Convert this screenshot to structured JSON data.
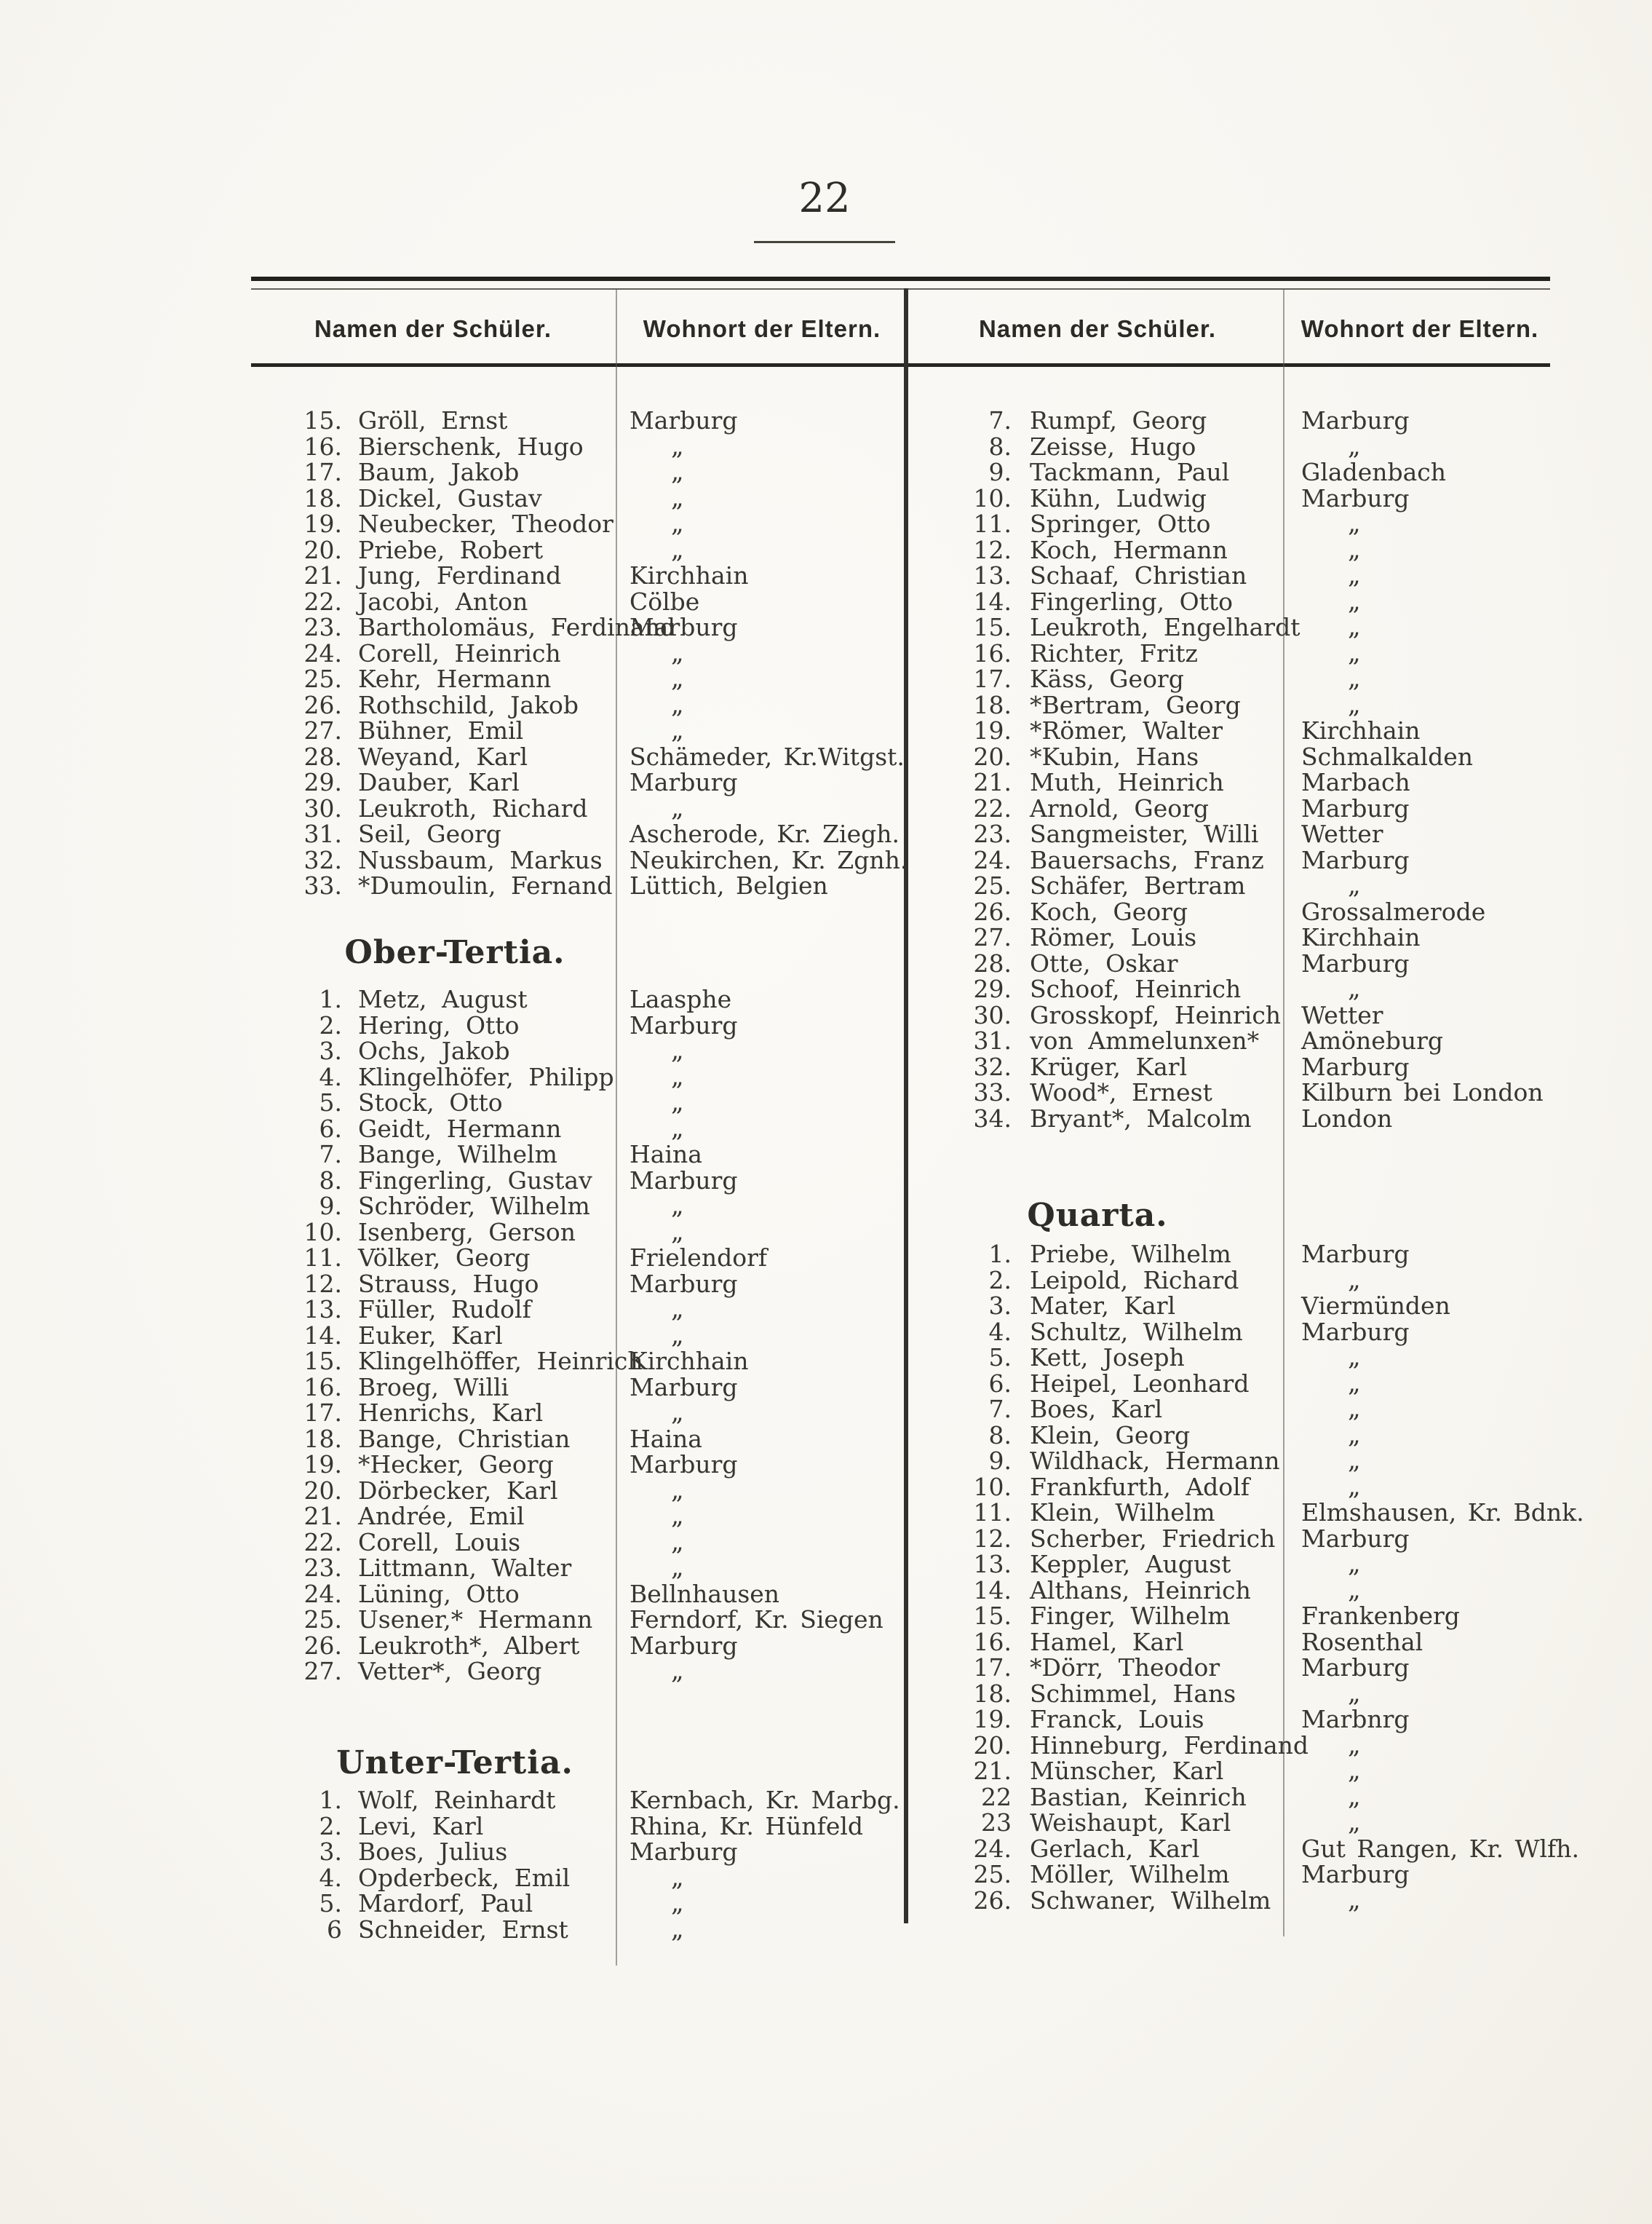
{
  "page_number": "22",
  "colors": {
    "paper": "#f8f6f1",
    "ink": "#38362f",
    "rule": "#23211c"
  },
  "table": {
    "headers": [
      "Namen der Schüler.",
      "Wohnort der Eltern.",
      "Namen der Schüler.",
      "Wohnort der Eltern."
    ],
    "ditto_mark": "„",
    "halves": [
      {
        "id": "left",
        "sections": [
          {
            "heading": "",
            "rows": [
              {
                "num": "15.",
                "name": "Gröll, Ernst",
                "place": "Marburg"
              },
              {
                "num": "16.",
                "name": "Bierschenk, Hugo",
                "place": "„"
              },
              {
                "num": "17.",
                "name": "Baum, Jakob",
                "place": "„"
              },
              {
                "num": "18.",
                "name": "Dickel, Gustav",
                "place": "„"
              },
              {
                "num": "19.",
                "name": "Neubecker, Theodor",
                "place": "„"
              },
              {
                "num": "20.",
                "name": "Priebe, Robert",
                "place": "„"
              },
              {
                "num": "21.",
                "name": "Jung, Ferdinand",
                "place": "Kirchhain"
              },
              {
                "num": "22.",
                "name": "Jacobi, Anton",
                "place": "Cölbe"
              },
              {
                "num": "23.",
                "name": "Bartholomäus, Ferdinand",
                "place": "Marburg"
              },
              {
                "num": "24.",
                "name": "Corell, Heinrich",
                "place": "„"
              },
              {
                "num": "25.",
                "name": "Kehr, Hermann",
                "place": "„"
              },
              {
                "num": "26.",
                "name": "Rothschild, Jakob",
                "place": "„"
              },
              {
                "num": "27.",
                "name": "Bühner, Emil",
                "place": "„"
              },
              {
                "num": "28.",
                "name": "Weyand, Karl",
                "place": "Schämeder, Kr.Witgst."
              },
              {
                "num": "29.",
                "name": "Dauber, Karl",
                "place": "Marburg"
              },
              {
                "num": "30.",
                "name": "Leukroth, Richard",
                "place": "„"
              },
              {
                "num": "31.",
                "name": "Seil, Georg",
                "place": "Ascherode, Kr. Ziegh."
              },
              {
                "num": "32.",
                "name": "Nussbaum, Markus",
                "place": "Neukirchen, Kr. Zgnh."
              },
              {
                "num": "33.",
                "name": "*Dumoulin, Fernand",
                "place": "Lüttich, Belgien"
              }
            ]
          },
          {
            "heading": "Ober-Tertia.",
            "rows": [
              {
                "num": "1.",
                "name": "Metz, August",
                "place": "Laasphe"
              },
              {
                "num": "2.",
                "name": "Hering, Otto",
                "place": "Marburg"
              },
              {
                "num": "3.",
                "name": "Ochs, Jakob",
                "place": "„"
              },
              {
                "num": "4.",
                "name": "Klingelhöfer, Philipp",
                "place": "„"
              },
              {
                "num": "5.",
                "name": "Stock, Otto",
                "place": "„"
              },
              {
                "num": "6.",
                "name": "Geidt, Hermann",
                "place": "„"
              },
              {
                "num": "7.",
                "name": "Bange, Wilhelm",
                "place": "Haina"
              },
              {
                "num": "8.",
                "name": "Fingerling, Gustav",
                "place": "Marburg"
              },
              {
                "num": "9.",
                "name": "Schröder, Wilhelm",
                "place": "„"
              },
              {
                "num": "10.",
                "name": "Isenberg, Gerson",
                "place": "„"
              },
              {
                "num": "11.",
                "name": "Völker, Georg",
                "place": "Frielendorf"
              },
              {
                "num": "12.",
                "name": "Strauss, Hugo",
                "place": "Marburg"
              },
              {
                "num": "13.",
                "name": "Füller, Rudolf",
                "place": "„"
              },
              {
                "num": "14.",
                "name": "Euker, Karl",
                "place": "„"
              },
              {
                "num": "15.",
                "name": "Klingelhöffer, Heinrich",
                "place": "Kirchhain"
              },
              {
                "num": "16.",
                "name": "Broeg, Willi",
                "place": "Marburg"
              },
              {
                "num": "17.",
                "name": "Henrichs, Karl",
                "place": "„"
              },
              {
                "num": "18.",
                "name": "Bange, Christian",
                "place": "Haina"
              },
              {
                "num": "19.",
                "name": "*Hecker, Georg",
                "place": "Marburg"
              },
              {
                "num": "20.",
                "name": "Dörbecker, Karl",
                "place": "„"
              },
              {
                "num": "21.",
                "name": "Andrée, Emil",
                "place": "„"
              },
              {
                "num": "22.",
                "name": "Corell, Louis",
                "place": "„"
              },
              {
                "num": "23.",
                "name": "Littmann, Walter",
                "place": "„"
              },
              {
                "num": "24.",
                "name": "Lüning, Otto",
                "place": "Bellnhausen"
              },
              {
                "num": "25.",
                "name": "Usener,* Hermann",
                "place": "Ferndorf, Kr. Siegen"
              },
              {
                "num": "26.",
                "name": "Leukroth*, Albert",
                "place": "Marburg"
              },
              {
                "num": "27.",
                "name": "Vetter*, Georg",
                "place": "„"
              }
            ]
          },
          {
            "heading": "Unter-Tertia.",
            "rows": [
              {
                "num": "1.",
                "name": "Wolf, Reinhardt",
                "place": "Kernbach, Kr. Marbg."
              },
              {
                "num": "2.",
                "name": "Levi, Karl",
                "place": "Rhina, Kr. Hünfeld"
              },
              {
                "num": "3.",
                "name": "Boes, Julius",
                "place": "Marburg"
              },
              {
                "num": "4.",
                "name": "Opderbeck, Emil",
                "place": "„"
              },
              {
                "num": "5.",
                "name": "Mardorf, Paul",
                "place": "„"
              },
              {
                "num": "6",
                "name": "Schneider, Ernst",
                "place": "„"
              }
            ]
          }
        ]
      },
      {
        "id": "right",
        "sections": [
          {
            "heading": "",
            "rows": [
              {
                "num": "7.",
                "name": "Rumpf, Georg",
                "place": "Marburg"
              },
              {
                "num": "8.",
                "name": "Zeisse, Hugo",
                "place": "„"
              },
              {
                "num": "9.",
                "name": "Tackmann, Paul",
                "place": "Gladenbach"
              },
              {
                "num": "10.",
                "name": "Kühn, Ludwig",
                "place": "Marburg"
              },
              {
                "num": "11.",
                "name": "Springer, Otto",
                "place": "„"
              },
              {
                "num": "12.",
                "name": "Koch, Hermann",
                "place": "„"
              },
              {
                "num": "13.",
                "name": "Schaaf, Christian",
                "place": "„"
              },
              {
                "num": "14.",
                "name": "Fingerling, Otto",
                "place": "„"
              },
              {
                "num": "15.",
                "name": "Leukroth, Engelhardt",
                "place": "„"
              },
              {
                "num": "16.",
                "name": "Richter, Fritz",
                "place": "„"
              },
              {
                "num": "17.",
                "name": "Käss, Georg",
                "place": "„"
              },
              {
                "num": "18.",
                "name": "*Bertram, Georg",
                "place": "„"
              },
              {
                "num": "19.",
                "name": "*Römer, Walter",
                "place": "Kirchhain"
              },
              {
                "num": "20.",
                "name": "*Kubin, Hans",
                "place": "Schmalkalden"
              },
              {
                "num": "21.",
                "name": "Muth, Heinrich",
                "place": "Marbach"
              },
              {
                "num": "22.",
                "name": "Arnold, Georg",
                "place": "Marburg"
              },
              {
                "num": "23.",
                "name": "Sangmeister, Willi",
                "place": "Wetter"
              },
              {
                "num": "24.",
                "name": "Bauersachs, Franz",
                "place": "Marburg"
              },
              {
                "num": "25.",
                "name": "Schäfer, Bertram",
                "place": "„"
              },
              {
                "num": "26.",
                "name": "Koch, Georg",
                "place": "Grossalmerode"
              },
              {
                "num": "27.",
                "name": "Römer, Louis",
                "place": "Kirchhain"
              },
              {
                "num": "28.",
                "name": "Otte, Oskar",
                "place": "Marburg"
              },
              {
                "num": "29.",
                "name": "Schoof, Heinrich",
                "place": "„"
              },
              {
                "num": "30.",
                "name": "Grosskopf, Heinrich",
                "place": "Wetter"
              },
              {
                "num": "31.",
                "name": "von Ammelunxen*",
                "place": "Amöneburg"
              },
              {
                "num": "32.",
                "name": "Krüger, Karl",
                "place": "Marburg"
              },
              {
                "num": "33.",
                "name": "Wood*, Ernest",
                "place": "Kilburn bei London"
              },
              {
                "num": "34.",
                "name": "Bryant*, Malcolm",
                "place": "London"
              }
            ]
          },
          {
            "heading": "Quarta.",
            "rows": [
              {
                "num": "1.",
                "name": "Priebe, Wilhelm",
                "place": "Marburg"
              },
              {
                "num": "2.",
                "name": "Leipold, Richard",
                "place": "„"
              },
              {
                "num": "3.",
                "name": "Mater, Karl",
                "place": "Viermünden"
              },
              {
                "num": "4.",
                "name": "Schultz, Wilhelm",
                "place": "Marburg"
              },
              {
                "num": "5.",
                "name": "Kett, Joseph",
                "place": "„"
              },
              {
                "num": "6.",
                "name": "Heipel, Leonhard",
                "place": "„"
              },
              {
                "num": "7.",
                "name": "Boes, Karl",
                "place": "„"
              },
              {
                "num": "8.",
                "name": "Klein, Georg",
                "place": "„"
              },
              {
                "num": "9.",
                "name": "Wildhack, Hermann",
                "place": "„"
              },
              {
                "num": "10.",
                "name": "Frankfurth, Adolf",
                "place": "„"
              },
              {
                "num": "11.",
                "name": "Klein, Wilhelm",
                "place": "Elmshausen, Kr. Bdnk."
              },
              {
                "num": "12.",
                "name": "Scherber, Friedrich",
                "place": "Marburg"
              },
              {
                "num": "13.",
                "name": "Keppler, August",
                "place": "„"
              },
              {
                "num": "14.",
                "name": "Althans, Heinrich",
                "place": "„"
              },
              {
                "num": "15.",
                "name": "Finger, Wilhelm",
                "place": "Frankenberg"
              },
              {
                "num": "16.",
                "name": "Hamel, Karl",
                "place": "Rosenthal"
              },
              {
                "num": "17.",
                "name": "*Dörr, Theodor",
                "place": "Marburg"
              },
              {
                "num": "18.",
                "name": "Schimmel, Hans",
                "place": "„"
              },
              {
                "num": "19.",
                "name": "Franck, Louis",
                "place": "Marbnrg"
              },
              {
                "num": "20.",
                "name": "Hinneburg, Ferdinand",
                "place": "„"
              },
              {
                "num": "21.",
                "name": "Münscher, Karl",
                "place": "„"
              },
              {
                "num": "22",
                "name": "Bastian, Keinrich",
                "place": "„"
              },
              {
                "num": "23",
                "name": "Weishaupt, Karl",
                "place": "„"
              },
              {
                "num": "24.",
                "name": "Gerlach, Karl",
                "place": "Gut Rangen, Kr. Wlfh."
              },
              {
                "num": "25.",
                "name": "Möller, Wilhelm",
                "place": "Marburg"
              },
              {
                "num": "26.",
                "name": "Schwaner, Wilhelm",
                "place": "„"
              }
            ]
          }
        ]
      }
    ]
  }
}
